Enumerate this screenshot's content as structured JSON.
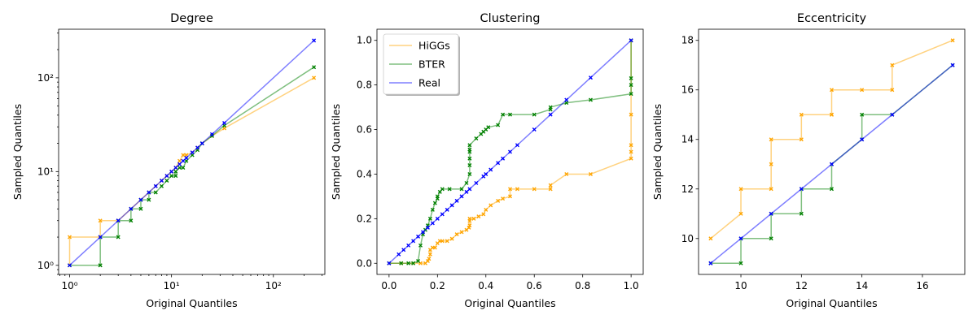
{
  "colors": {
    "higgs": "#ffa500",
    "bter": "#008000",
    "real": "#0000ff"
  },
  "chart_data": [
    {
      "type": "line",
      "title": "Degree",
      "xlabel": "Original Quantiles",
      "ylabel": "Sampled Quantiles",
      "xscale": "log",
      "yscale": "log",
      "xlim": [
        0.78,
        320
      ],
      "ylim": [
        0.8,
        330
      ],
      "xticks": [
        1,
        10,
        100
      ],
      "xtick_labels": [
        "10⁰",
        "10¹",
        "10²"
      ],
      "yticks": [
        1,
        10,
        100
      ],
      "ytick_labels": [
        "10⁰",
        "10¹",
        "10²"
      ],
      "legend": null,
      "series": [
        {
          "name": "HiGGs",
          "color": "#ffa500",
          "x": [
            1,
            1,
            2,
            2,
            3,
            4,
            5,
            6,
            7,
            8,
            9,
            10,
            11,
            12,
            13,
            14,
            16,
            18,
            20,
            25,
            33,
            250
          ],
          "y": [
            1,
            2,
            2,
            3,
            3,
            4,
            5,
            6,
            7,
            8,
            9,
            10,
            11,
            13,
            15,
            15,
            16,
            18,
            20,
            24,
            29,
            100
          ]
        },
        {
          "name": "BTER",
          "color": "#008000",
          "x": [
            1,
            2,
            2,
            2,
            3,
            3,
            4,
            4,
            5,
            5,
            6,
            6,
            7,
            8,
            9,
            10,
            11,
            11,
            12,
            13,
            14,
            16,
            18,
            20,
            25,
            33,
            250
          ],
          "y": [
            1,
            1,
            1,
            2,
            2,
            3,
            3,
            4,
            4,
            5,
            5,
            6,
            6,
            7,
            8,
            9,
            9,
            10,
            11,
            11,
            13,
            15,
            17,
            20,
            24,
            31,
            130
          ]
        },
        {
          "name": "Real",
          "color": "#0000ff",
          "x": [
            1,
            2,
            3,
            4,
            5,
            6,
            7,
            8,
            9,
            10,
            11,
            12,
            13,
            14,
            16,
            18,
            20,
            25,
            33,
            250
          ],
          "y": [
            1,
            2,
            3,
            4,
            5,
            6,
            7,
            8,
            9,
            10,
            11,
            12,
            13,
            14,
            16,
            18,
            20,
            25,
            33,
            250
          ]
        }
      ]
    },
    {
      "type": "line",
      "title": "Clustering",
      "xlabel": "Original Quantiles",
      "ylabel": "Sampled Quantiles",
      "xscale": "linear",
      "yscale": "linear",
      "xlim": [
        -0.05,
        1.05
      ],
      "ylim": [
        -0.05,
        1.05
      ],
      "xticks": [
        0.0,
        0.2,
        0.4,
        0.6,
        0.8,
        1.0
      ],
      "xtick_labels": [
        "0.0",
        "0.2",
        "0.4",
        "0.6",
        "0.8",
        "1.0"
      ],
      "yticks": [
        0.0,
        0.2,
        0.4,
        0.6,
        0.8,
        1.0
      ],
      "ytick_labels": [
        "0.0",
        "0.2",
        "0.4",
        "0.6",
        "0.8",
        "1.0"
      ],
      "legend": {
        "position": "upper-left",
        "entries": [
          "HiGGs",
          "BTER",
          "Real"
        ]
      },
      "series": [
        {
          "name": "HiGGs",
          "color": "#ffa500",
          "x": [
            0,
            0.05,
            0.1,
            0.13,
            0.15,
            0.16,
            0.165,
            0.17,
            0.17,
            0.18,
            0.19,
            0.2,
            0.21,
            0.22,
            0.24,
            0.26,
            0.28,
            0.3,
            0.32,
            0.33,
            0.333,
            0.333,
            0.333,
            0.35,
            0.37,
            0.39,
            0.4,
            0.42,
            0.45,
            0.47,
            0.5,
            0.5,
            0.53,
            0.6,
            0.667,
            0.667,
            0.733,
            0.833,
            1,
            1,
            1,
            1,
            1
          ],
          "y": [
            0,
            0,
            0,
            0,
            0,
            0.01,
            0.02,
            0.04,
            0.06,
            0.07,
            0.07,
            0.09,
            0.1,
            0.1,
            0.1,
            0.11,
            0.13,
            0.14,
            0.15,
            0.16,
            0.17,
            0.19,
            0.2,
            0.2,
            0.21,
            0.22,
            0.24,
            0.26,
            0.28,
            0.29,
            0.3,
            0.333,
            0.333,
            0.333,
            0.333,
            0.35,
            0.4,
            0.4,
            0.47,
            0.5,
            0.53,
            0.667,
            1
          ]
        },
        {
          "name": "BTER",
          "color": "#008000",
          "x": [
            0,
            0.05,
            0.08,
            0.1,
            0.12,
            0.13,
            0.14,
            0.15,
            0.16,
            0.17,
            0.18,
            0.19,
            0.2,
            0.2,
            0.21,
            0.22,
            0.25,
            0.3,
            0.32,
            0.333,
            0.333,
            0.333,
            0.333,
            0.333,
            0.333,
            0.36,
            0.38,
            0.39,
            0.4,
            0.41,
            0.45,
            0.47,
            0.5,
            0.6,
            0.667,
            0.667,
            0.733,
            0.833,
            1,
            1,
            1,
            1
          ],
          "y": [
            0,
            0,
            0,
            0,
            0.01,
            0.08,
            0.13,
            0.15,
            0.17,
            0.2,
            0.24,
            0.27,
            0.29,
            0.3,
            0.32,
            0.333,
            0.333,
            0.333,
            0.36,
            0.4,
            0.44,
            0.47,
            0.5,
            0.51,
            0.53,
            0.56,
            0.58,
            0.59,
            0.6,
            0.61,
            0.62,
            0.667,
            0.667,
            0.667,
            0.69,
            0.7,
            0.72,
            0.733,
            0.76,
            0.8,
            0.83,
            1
          ]
        },
        {
          "name": "Real",
          "color": "#0000ff",
          "x": [
            0,
            0.04,
            0.06,
            0.08,
            0.1,
            0.12,
            0.14,
            0.16,
            0.18,
            0.2,
            0.22,
            0.24,
            0.26,
            0.28,
            0.3,
            0.32,
            0.333,
            0.36,
            0.39,
            0.4,
            0.42,
            0.45,
            0.47,
            0.5,
            0.53,
            0.6,
            0.667,
            0.733,
            0.833,
            1
          ],
          "y": [
            0,
            0.04,
            0.06,
            0.08,
            0.1,
            0.12,
            0.14,
            0.16,
            0.18,
            0.2,
            0.22,
            0.24,
            0.26,
            0.28,
            0.3,
            0.32,
            0.333,
            0.36,
            0.39,
            0.4,
            0.42,
            0.45,
            0.47,
            0.5,
            0.53,
            0.6,
            0.667,
            0.733,
            0.833,
            1
          ]
        }
      ]
    },
    {
      "type": "line",
      "title": "Eccentricity",
      "xlabel": "Original Quantiles",
      "ylabel": "Sampled Quantiles",
      "xscale": "linear",
      "yscale": "linear",
      "xlim": [
        8.6,
        17.4
      ],
      "ylim": [
        8.55,
        18.45
      ],
      "xticks": [
        10,
        12,
        14,
        16
      ],
      "xtick_labels": [
        "10",
        "12",
        "14",
        "16"
      ],
      "yticks": [
        10,
        12,
        14,
        16,
        18
      ],
      "ytick_labels": [
        "10",
        "12",
        "14",
        "16",
        "18"
      ],
      "legend": null,
      "series": [
        {
          "name": "HiGGs",
          "color": "#ffa500",
          "x": [
            9,
            10,
            10,
            11,
            11,
            11,
            12,
            12,
            13,
            13,
            13,
            14,
            15,
            15,
            17
          ],
          "y": [
            10,
            11,
            12,
            12,
            13,
            14,
            14,
            15,
            15,
            15,
            16,
            16,
            16,
            17,
            18
          ]
        },
        {
          "name": "BTER",
          "color": "#008000",
          "x": [
            9,
            10,
            10,
            11,
            11,
            12,
            12,
            13,
            13,
            14,
            14,
            15,
            17
          ],
          "y": [
            9,
            9,
            10,
            10,
            11,
            11,
            12,
            12,
            13,
            14,
            15,
            15,
            17
          ]
        },
        {
          "name": "Real",
          "color": "#0000ff",
          "x": [
            9,
            10,
            11,
            12,
            13,
            14,
            15,
            17
          ],
          "y": [
            9,
            10,
            11,
            12,
            13,
            14,
            15,
            17
          ]
        }
      ]
    }
  ]
}
